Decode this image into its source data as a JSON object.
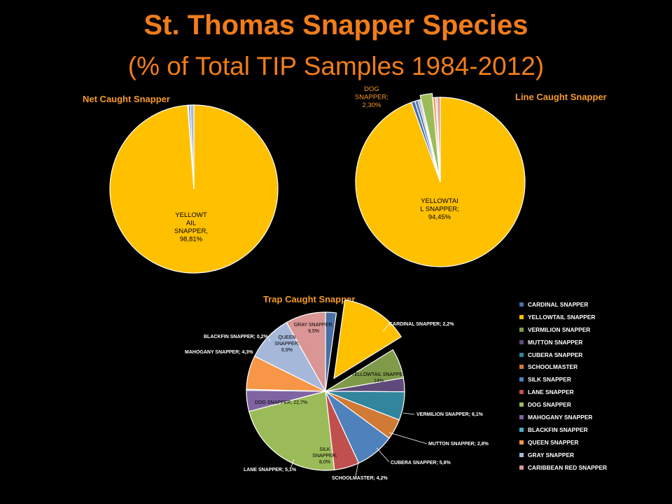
{
  "title": "St. Thomas Snapper Species",
  "subtitle": "(% of Total TIP Samples 1984-2012)",
  "colors": {
    "CARDINAL SNAPPER": "#4a6fa5",
    "YELLOWTAIL SNAPPER": "#ffc000",
    "VERMILION SNAPPER": "#7f9a48",
    "MUTTON SNAPPER": "#604a7b",
    "CUBERA SNAPPER": "#31859c",
    "SCHOOLMASTER": "#d07a35",
    "SILK SNAPPER": "#4f81bd",
    "LANE SNAPPER": "#c0504d",
    "DOG SNAPPER": "#9bbb59",
    "MAHOGANY SNAPPER": "#8064a2",
    "BLACKFIN SNAPPER": "#4bacc6",
    "QUEEN SNAPPER": "#f79646",
    "GRAY SNAPPER": "#a5b8da",
    "CARIBBEAN RED SNAPPER": "#d99694"
  },
  "chart_data": [
    {
      "type": "pie",
      "title": "Net Caught Snapper",
      "slices": [
        {
          "name": "YELLOWTAIL SNAPPER",
          "value": 98.81,
          "label": "YELLOWT|AIL|SNAPPER,|98,81%"
        },
        {
          "name": "LANE SNAPPER",
          "value": 0.15
        },
        {
          "name": "SILK SNAPPER",
          "value": 0.35
        },
        {
          "name": "GRAY SNAPPER",
          "value": 0.69
        }
      ]
    },
    {
      "type": "pie",
      "title": "Line Caught Snapper",
      "slices": [
        {
          "name": "YELLOWTAIL SNAPPER",
          "value": 94.45,
          "label": "YELLOWTAI|L SNAPPER;|94,45%"
        },
        {
          "name": "CARDINAL SNAPPER",
          "value": 0.7
        },
        {
          "name": "SILK SNAPPER",
          "value": 0.6
        },
        {
          "name": "LANE SNAPPER",
          "value": 0.3
        },
        {
          "name": "BLACKFIN SNAPPER",
          "value": 0.25
        },
        {
          "name": "DOG SNAPPER",
          "value": 2.3,
          "label": "DOG|SNAPPER;|2,30%",
          "exploded": true
        },
        {
          "name": "QUEEN SNAPPER",
          "value": 0.5
        },
        {
          "name": "GRAY SNAPPER",
          "value": 0.3
        },
        {
          "name": "CARIBBEAN RED SNAPPER",
          "value": 0.6
        }
      ]
    },
    {
      "type": "pie",
      "title": "Trap Caught Snapper",
      "slices": [
        {
          "name": "CARDINAL SNAPPER",
          "value": 2.2,
          "label": "CARDINAL SNAPPER; 2,2%"
        },
        {
          "name": "YELLOWTAIL SNAPPER",
          "value": 14,
          "label": "YELLOWTAIL SNAPPER|14%",
          "exploded": true
        },
        {
          "name": "VERMILION SNAPPER",
          "value": 6.1,
          "label": "VERMILION SNAPPER; 6,1%"
        },
        {
          "name": "MUTTON SNAPPER",
          "value": 2.8,
          "label": "MUTTON SNAPPER; 2,8%"
        },
        {
          "name": "CUBERA SNAPPER",
          "value": 5.8,
          "label": "CUBERA SNAPPER; 5,8%"
        },
        {
          "name": "SCHOOLMASTER",
          "value": 4.2,
          "label": "SCHOOLMASTER; 4,2%"
        },
        {
          "name": "SILK SNAPPER",
          "value": 8.0,
          "label": "SILK|SNAPPER;|8,0%"
        },
        {
          "name": "LANE SNAPPER",
          "value": 5.1,
          "label": "LANE SNAPPER; 5,1%"
        },
        {
          "name": "DOG SNAPPER",
          "value": 22.7,
          "label": "DOG SNAPPER; 22,7%"
        },
        {
          "name": "MAHOGANY SNAPPER",
          "value": 4.3,
          "label": "MAHOGANY SNAPPER; 4,3%"
        },
        {
          "name": "BLACKFIN SNAPPER",
          "value": 0.2,
          "label": "BLACKFIN SNAPPER; 0,2%"
        },
        {
          "name": "QUEEN SNAPPER",
          "value": 6.9,
          "label": "QUEEN|SNAPPER;|6,9%"
        },
        {
          "name": "GRAY SNAPPER",
          "value": 9.5,
          "label": "GRAY SNAPPER;|9,5%"
        },
        {
          "name": "CARIBBEAN RED SNAPPER",
          "value": 8.2
        }
      ],
      "legend": {
        "position": "right",
        "entries": [
          "CARDINAL SNAPPER",
          "YELLOWTAIL SNAPPER",
          "VERMILION SNAPPER",
          "MUTTON SNAPPER",
          "CUBERA SNAPPER",
          "SCHOOLMASTER",
          "SILK SNAPPER",
          "LANE SNAPPER",
          "DOG SNAPPER",
          "MAHOGANY SNAPPER",
          "BLACKFIN SNAPPER",
          "QUEEN SNAPPER",
          "GRAY SNAPPER",
          "CARIBBEAN RED SNAPPER"
        ]
      }
    }
  ]
}
